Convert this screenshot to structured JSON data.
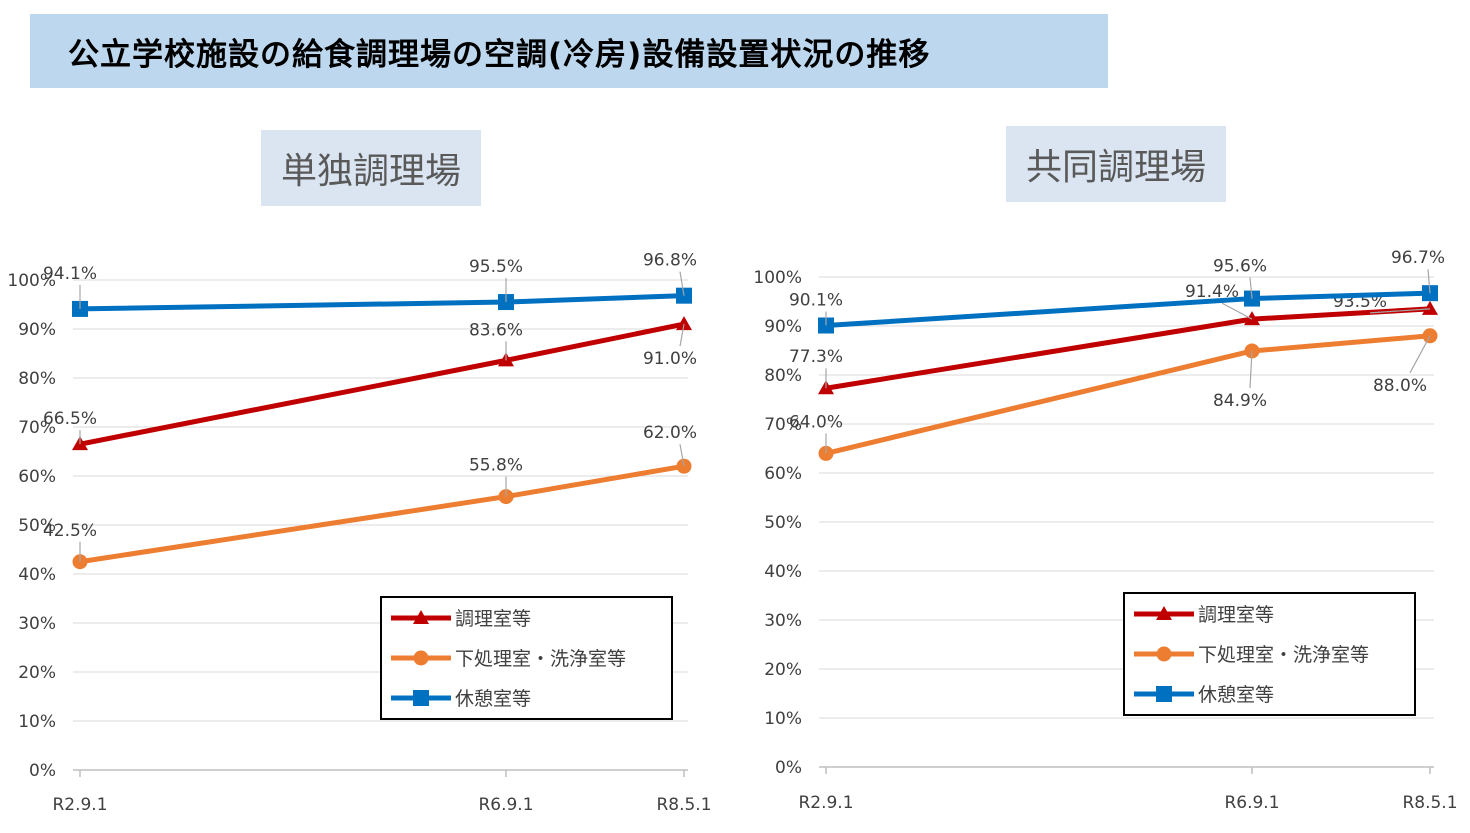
{
  "page": {
    "title": "公立学校施設の給食調理場の空調(冷房)設備設置状況の推移"
  },
  "chart_data": [
    {
      "type": "line",
      "title": "単独調理場",
      "categories": [
        "R2.9.1",
        "R6.9.1",
        "R8.5.1"
      ],
      "ylim": [
        0,
        100
      ],
      "yticks": [
        "0%",
        "10%",
        "20%",
        "30%",
        "40%",
        "50%",
        "60%",
        "70%",
        "80%",
        "90%",
        "100%"
      ],
      "grid": true,
      "legend_position": "bottom-right",
      "series": [
        {
          "name": "調理室等",
          "values": [
            66.5,
            83.6,
            91.0
          ],
          "labels": [
            "66.5%",
            "83.6%",
            "91.0%"
          ],
          "color": "#c00000",
          "marker": "triangle"
        },
        {
          "name": "下処理室・洗浄室等",
          "values": [
            42.5,
            55.8,
            62.0
          ],
          "labels": [
            "42.5%",
            "55.8%",
            "62.0%"
          ],
          "color": "#ed7d31",
          "marker": "circle"
        },
        {
          "name": "休憩室等",
          "values": [
            94.1,
            95.5,
            96.8
          ],
          "labels": [
            "94.1%",
            "95.5%",
            "96.8%"
          ],
          "color": "#0070c0",
          "marker": "square"
        }
      ]
    },
    {
      "type": "line",
      "title": "共同調理場",
      "categories": [
        "R2.9.1",
        "R6.9.1",
        "R8.5.1"
      ],
      "ylim": [
        0,
        100
      ],
      "yticks": [
        "0%",
        "10%",
        "20%",
        "30%",
        "40%",
        "50%",
        "60%",
        "70%",
        "80%",
        "90%",
        "100%"
      ],
      "grid": true,
      "legend_position": "bottom-right",
      "series": [
        {
          "name": "調理室等",
          "values": [
            77.3,
            91.4,
            93.5
          ],
          "labels": [
            "77.3%",
            "91.4%",
            "93.5%"
          ],
          "color": "#c00000",
          "marker": "triangle"
        },
        {
          "name": "下処理室・洗浄室等",
          "values": [
            64.0,
            84.9,
            88.0
          ],
          "labels": [
            "64.0%",
            "84.9%",
            "88.0%"
          ],
          "color": "#ed7d31",
          "marker": "circle"
        },
        {
          "name": "休憩室等",
          "values": [
            90.1,
            95.6,
            96.7
          ],
          "labels": [
            "90.1%",
            "95.6%",
            "96.7%"
          ],
          "color": "#0070c0",
          "marker": "square"
        }
      ]
    }
  ]
}
